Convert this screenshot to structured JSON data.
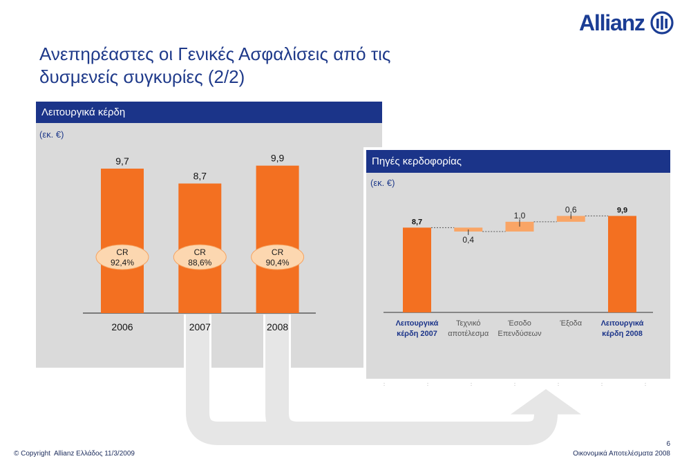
{
  "logo": {
    "text": "Allianz",
    "icon": "allianz-logo-icon"
  },
  "title": {
    "line1": "Ανεπηρέαστες οι Γενικές Ασφαλίσεις από τις",
    "line2": "δυσμενείς συγκυρίες (2/2)"
  },
  "colors": {
    "brand_blue": "#1b3d94",
    "header_navy": "#1b3489",
    "bar_orange": "#f37021",
    "delta_orange": "#f9a566",
    "cr_badge_fill": "#fcd7b0",
    "cr_badge_stroke": "#f6a25f",
    "panel_gray": "#dadada",
    "arrow_gray": "#e6e6e6"
  },
  "chart_data": [
    {
      "type": "bar",
      "title": "Λειτουργικά κέρδη",
      "unit": "(εκ. €)",
      "categories": [
        "2006",
        "2007",
        "2008"
      ],
      "values": [
        9.7,
        8.7,
        9.9
      ],
      "value_labels": [
        "9,7",
        "8,7",
        "9,9"
      ],
      "annotations": [
        {
          "label": "CR",
          "value": "92,4%"
        },
        {
          "label": "CR",
          "value": "88,6%"
        },
        {
          "label": "CR",
          "value": "90,4%"
        }
      ],
      "grid": false
    },
    {
      "type": "bar",
      "waterfall": true,
      "title": "Πηγές κερδοφορίας",
      "unit": "(εκ. €)",
      "categories": [
        [
          "Λειτουργικά",
          "κέρδη 2007"
        ],
        [
          "Τεχνικό",
          "αποτέλεσμα"
        ],
        [
          "Έσοδο",
          "Επενδύσεων"
        ],
        [
          "Έξοδα"
        ],
        [
          "Λειτουργικά",
          "κέρδη 2008"
        ]
      ],
      "values": [
        8.7,
        -0.4,
        1.0,
        0.6,
        9.9
      ],
      "is_total": [
        true,
        false,
        false,
        false,
        true
      ],
      "value_labels": [
        "8,7",
        "0,4",
        "1,0",
        "0,6",
        "9,9"
      ],
      "grid": false
    }
  ],
  "footer": {
    "copyright": "© Copyright  Allianz Ελλάδος 11/3/2009",
    "page_number": "6",
    "deck_title": "Οικονομικά Αποτελέσματα 2008"
  }
}
